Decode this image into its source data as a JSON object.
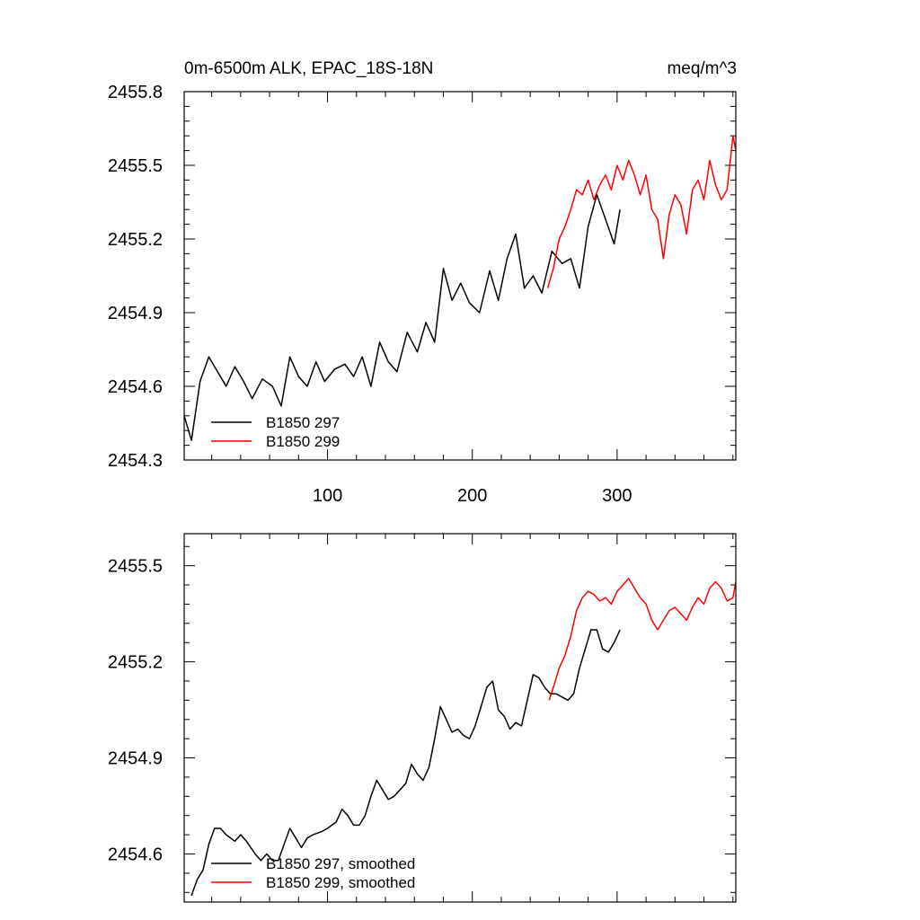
{
  "chart_data": [
    {
      "type": "line",
      "title_left": "0m-6500m ALK, EPAC_18S-18N",
      "title_right": "meq/m^3",
      "xlim": [
        1,
        382
      ],
      "ylim": [
        2454.3,
        2455.8
      ],
      "y_ticks": [
        "2455.8",
        "2455.5",
        "2455.2",
        "2454.9",
        "2454.6",
        "2454.3"
      ],
      "x_ticks": [
        "100",
        "200",
        "300"
      ],
      "legend": [
        "B1850 297",
        "B1850 299"
      ],
      "legend_position": "bottom-left",
      "series": [
        {
          "name": "B1850 297",
          "color": "#000000",
          "x": [
            1,
            6,
            12,
            18,
            24,
            30,
            36,
            42,
            48,
            55,
            62,
            68,
            74,
            80,
            86,
            92,
            98,
            105,
            112,
            118,
            124,
            130,
            136,
            142,
            148,
            155,
            162,
            168,
            174,
            180,
            186,
            192,
            198,
            205,
            212,
            218,
            224,
            230,
            236,
            242,
            248,
            255,
            262,
            268,
            274,
            280,
            286,
            292,
            298,
            302
          ],
          "values": [
            2454.48,
            2454.38,
            2454.62,
            2454.72,
            2454.66,
            2454.6,
            2454.68,
            2454.62,
            2454.55,
            2454.63,
            2454.6,
            2454.52,
            2454.72,
            2454.64,
            2454.6,
            2454.7,
            2454.62,
            2454.67,
            2454.69,
            2454.64,
            2454.72,
            2454.6,
            2454.78,
            2454.7,
            2454.66,
            2454.82,
            2454.74,
            2454.86,
            2454.78,
            2455.08,
            2454.95,
            2455.02,
            2454.94,
            2454.9,
            2455.07,
            2454.95,
            2455.12,
            2455.22,
            2455.0,
            2455.05,
            2454.98,
            2455.15,
            2455.1,
            2455.12,
            2455.0,
            2455.25,
            2455.38,
            2455.28,
            2455.18,
            2455.32
          ]
        },
        {
          "name": "B1850 299",
          "color": "#ff0000",
          "x": [
            252,
            256,
            260,
            264,
            268,
            272,
            276,
            280,
            284,
            288,
            292,
            296,
            300,
            304,
            308,
            312,
            316,
            320,
            324,
            328,
            332,
            336,
            340,
            344,
            348,
            352,
            356,
            360,
            364,
            368,
            372,
            376,
            380,
            382
          ],
          "values": [
            2455.0,
            2455.08,
            2455.2,
            2455.25,
            2455.32,
            2455.4,
            2455.38,
            2455.44,
            2455.36,
            2455.42,
            2455.46,
            2455.4,
            2455.5,
            2455.44,
            2455.52,
            2455.46,
            2455.38,
            2455.46,
            2455.32,
            2455.28,
            2455.12,
            2455.3,
            2455.38,
            2455.34,
            2455.22,
            2455.4,
            2455.44,
            2455.36,
            2455.52,
            2455.42,
            2455.36,
            2455.4,
            2455.62,
            2455.56
          ]
        }
      ]
    },
    {
      "type": "line",
      "xlim": [
        1,
        382
      ],
      "ylim": [
        2454.45,
        2455.6
      ],
      "y_ticks": [
        "2455.5",
        "2455.2",
        "2454.9",
        "2454.6"
      ],
      "legend": [
        "B1850 297, smoothed",
        "B1850 299, smoothed"
      ],
      "legend_position": "bottom-left",
      "series": [
        {
          "name": "B1850 297, smoothed",
          "color": "#000000",
          "x": [
            6,
            10,
            14,
            18,
            22,
            26,
            30,
            36,
            40,
            44,
            50,
            54,
            58,
            62,
            66,
            70,
            74,
            78,
            82,
            86,
            90,
            96,
            100,
            106,
            110,
            114,
            118,
            122,
            126,
            130,
            134,
            138,
            142,
            146,
            150,
            154,
            158,
            162,
            166,
            170,
            174,
            178,
            182,
            186,
            190,
            194,
            198,
            202,
            206,
            210,
            214,
            218,
            222,
            226,
            230,
            234,
            238,
            242,
            246,
            250,
            254,
            258,
            262,
            266,
            270,
            274,
            278,
            282,
            286,
            290,
            294,
            298,
            302
          ],
          "values": [
            2454.47,
            2454.52,
            2454.55,
            2454.63,
            2454.68,
            2454.68,
            2454.66,
            2454.64,
            2454.66,
            2454.64,
            2454.6,
            2454.58,
            2454.6,
            2454.58,
            2454.58,
            2454.63,
            2454.68,
            2454.65,
            2454.62,
            2454.65,
            2454.66,
            2454.67,
            2454.68,
            2454.7,
            2454.74,
            2454.72,
            2454.69,
            2454.69,
            2454.72,
            2454.78,
            2454.83,
            2454.8,
            2454.77,
            2454.78,
            2454.8,
            2454.82,
            2454.88,
            2454.85,
            2454.83,
            2454.87,
            2454.96,
            2455.06,
            2455.02,
            2454.98,
            2454.99,
            2454.97,
            2454.96,
            2455.0,
            2455.06,
            2455.12,
            2455.14,
            2455.05,
            2455.03,
            2454.99,
            2455.01,
            2455.0,
            2455.08,
            2455.16,
            2455.15,
            2455.12,
            2455.1,
            2455.1,
            2455.09,
            2455.08,
            2455.1,
            2455.18,
            2455.24,
            2455.3,
            2455.3,
            2455.24,
            2455.23,
            2455.26,
            2455.3
          ]
        },
        {
          "name": "B1850 299, smoothed",
          "color": "#ff0000",
          "x": [
            253,
            256,
            260,
            264,
            268,
            272,
            276,
            280,
            284,
            288,
            292,
            296,
            300,
            304,
            308,
            312,
            316,
            320,
            324,
            328,
            332,
            336,
            340,
            344,
            348,
            352,
            356,
            360,
            364,
            368,
            372,
            376,
            380,
            382
          ],
          "values": [
            2455.08,
            2455.12,
            2455.18,
            2455.22,
            2455.28,
            2455.36,
            2455.4,
            2455.42,
            2455.41,
            2455.39,
            2455.4,
            2455.38,
            2455.42,
            2455.44,
            2455.46,
            2455.43,
            2455.4,
            2455.38,
            2455.33,
            2455.3,
            2455.33,
            2455.36,
            2455.37,
            2455.35,
            2455.33,
            2455.37,
            2455.4,
            2455.38,
            2455.43,
            2455.45,
            2455.43,
            2455.39,
            2455.4,
            2455.45
          ]
        }
      ]
    }
  ]
}
